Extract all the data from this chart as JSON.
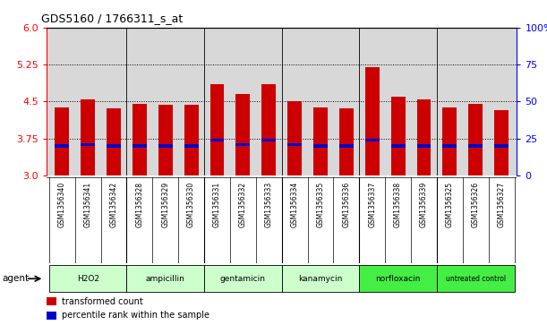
{
  "title": "GDS5160 / 1766311_s_at",
  "samples": [
    "GSM1356340",
    "GSM1356341",
    "GSM1356342",
    "GSM1356328",
    "GSM1356329",
    "GSM1356330",
    "GSM1356331",
    "GSM1356332",
    "GSM1356333",
    "GSM1356334",
    "GSM1356335",
    "GSM1356336",
    "GSM1356337",
    "GSM1356338",
    "GSM1356339",
    "GSM1356325",
    "GSM1356326",
    "GSM1356327"
  ],
  "transformed_count": [
    4.38,
    4.55,
    4.37,
    4.45,
    4.44,
    4.43,
    4.85,
    4.65,
    4.85,
    4.5,
    4.38,
    4.37,
    5.2,
    4.6,
    4.55,
    4.38,
    4.45,
    4.32
  ],
  "percentile_rank_y": [
    3.6,
    3.63,
    3.6,
    3.6,
    3.6,
    3.6,
    3.72,
    3.63,
    3.72,
    3.63,
    3.6,
    3.6,
    3.72,
    3.6,
    3.6,
    3.6,
    3.6,
    3.6
  ],
  "agents": [
    {
      "name": "H2O2",
      "start": 0,
      "end": 3,
      "color": "#ccffcc"
    },
    {
      "name": "ampicillin",
      "start": 3,
      "end": 6,
      "color": "#ccffcc"
    },
    {
      "name": "gentamicin",
      "start": 6,
      "end": 9,
      "color": "#ccffcc"
    },
    {
      "name": "kanamycin",
      "start": 9,
      "end": 12,
      "color": "#ccffcc"
    },
    {
      "name": "norfloxacin",
      "start": 12,
      "end": 15,
      "color": "#44ee44"
    },
    {
      "name": "untreated control",
      "start": 15,
      "end": 18,
      "color": "#44ee44"
    }
  ],
  "ylim_left": [
    3.0,
    6.0
  ],
  "ylim_right": [
    0,
    100
  ],
  "yticks_left": [
    3.0,
    3.75,
    4.5,
    5.25,
    6.0
  ],
  "yticks_right": [
    0,
    25,
    50,
    75,
    100
  ],
  "bar_color": "#cc0000",
  "percentile_color": "#0000cc",
  "bar_bottom": 3.0,
  "dotted_lines": [
    3.75,
    4.5,
    5.25
  ],
  "background_color": "#d8d8d8",
  "sample_bg_color": "#d8d8d8"
}
